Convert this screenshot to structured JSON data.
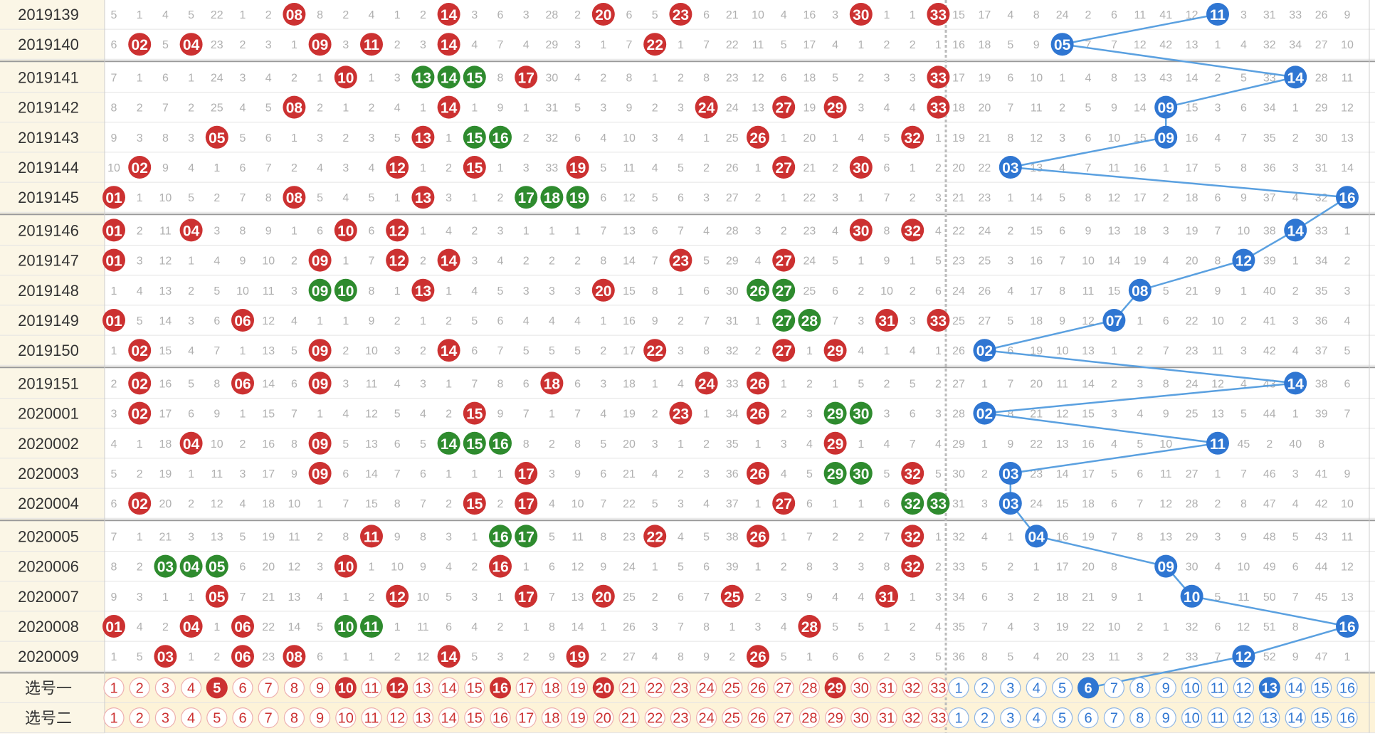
{
  "labels": {
    "select_one": "选号一",
    "select_two": "选号二"
  },
  "colors": {
    "red_ball": "#cc3131",
    "green_ball": "#2e8b2e",
    "blue_ball": "#2f76d2",
    "line": "#5aa0e0",
    "period_bg": "#fbf6e6",
    "select_bg": "#fdf3d8",
    "grid": "#e4e4e4"
  },
  "red_selected": [
    5,
    10,
    12,
    16,
    20,
    29
  ],
  "blue_selected": [
    6,
    13
  ],
  "rows": [
    {
      "period": "2019139",
      "red": [
        8,
        14,
        20,
        23,
        30,
        33
      ],
      "blue": 11,
      "group_start": false
    },
    {
      "period": "2019140",
      "red": [
        2,
        4,
        9,
        11,
        14,
        22
      ],
      "blue": 5,
      "group_start": false
    },
    {
      "period": "2019141",
      "red": [
        10,
        13,
        14,
        15,
        17,
        33
      ],
      "blue": 14,
      "group_start": true
    },
    {
      "period": "2019142",
      "red": [
        8,
        14,
        24,
        27,
        29,
        33
      ],
      "blue": 9,
      "group_start": false
    },
    {
      "period": "2019143",
      "red": [
        5,
        13,
        15,
        16,
        26,
        32
      ],
      "blue": 9,
      "group_start": false
    },
    {
      "period": "2019144",
      "red": [
        2,
        12,
        15,
        19,
        27,
        30
      ],
      "blue": 3,
      "group_start": false
    },
    {
      "period": "2019145",
      "red": [
        1,
        8,
        13,
        17,
        18,
        19
      ],
      "blue": 16,
      "group_start": false
    },
    {
      "period": "2019146",
      "red": [
        1,
        4,
        10,
        12,
        30,
        32
      ],
      "blue": 14,
      "group_start": true
    },
    {
      "period": "2019147",
      "red": [
        1,
        9,
        12,
        14,
        23,
        27
      ],
      "blue": 12,
      "group_start": false
    },
    {
      "period": "2019148",
      "red": [
        9,
        10,
        13,
        20,
        26,
        27
      ],
      "blue": 8,
      "group_start": false
    },
    {
      "period": "2019149",
      "red": [
        1,
        6,
        27,
        28,
        31,
        33
      ],
      "blue": 7,
      "group_start": false
    },
    {
      "period": "2019150",
      "red": [
        2,
        9,
        14,
        22,
        27,
        29
      ],
      "blue": 2,
      "group_start": false
    },
    {
      "period": "2019151",
      "red": [
        2,
        6,
        9,
        18,
        24,
        26
      ],
      "blue": 14,
      "group_start": true
    },
    {
      "period": "2020001",
      "red": [
        2,
        15,
        23,
        26,
        29,
        30
      ],
      "blue": 2,
      "group_start": false
    },
    {
      "period": "2020002",
      "red": [
        4,
        9,
        14,
        15,
        16,
        29
      ],
      "blue": 11,
      "group_start": false
    },
    {
      "period": "2020003",
      "red": [
        9,
        17,
        26,
        29,
        30,
        32
      ],
      "blue": 3,
      "group_start": false
    },
    {
      "period": "2020004",
      "red": [
        2,
        15,
        17,
        27,
        32,
        33
      ],
      "blue": 3,
      "group_start": false
    },
    {
      "period": "2020005",
      "red": [
        11,
        16,
        17,
        22,
        26,
        32
      ],
      "blue": 4,
      "group_start": true
    },
    {
      "period": "2020006",
      "red": [
        3,
        4,
        5,
        10,
        16,
        32
      ],
      "blue": 9,
      "group_start": false
    },
    {
      "period": "2020007",
      "red": [
        5,
        12,
        17,
        20,
        25,
        31
      ],
      "blue": 10,
      "group_start": false
    },
    {
      "period": "2020008",
      "red": [
        1,
        4,
        6,
        10,
        11,
        28
      ],
      "blue": 16,
      "group_start": false
    },
    {
      "period": "2020009",
      "red": [
        3,
        6,
        8,
        14,
        19,
        26
      ],
      "blue": 12,
      "group_start": false
    }
  ],
  "misses": [
    [
      "5",
      "1",
      "4",
      "5",
      "22",
      "1",
      "2",
      "",
      "8",
      "2",
      "4",
      "1",
      "2",
      "",
      "3",
      "6",
      "3",
      "28",
      "2",
      "",
      "6",
      "5",
      "",
      "6",
      "21",
      "10",
      "4",
      "16",
      "3",
      "",
      "1",
      "1",
      "",
      "15",
      "17",
      "4",
      "8",
      "24",
      "2",
      "6",
      "11",
      "41",
      "12",
      "",
      "3",
      "31",
      "33",
      "26",
      "9"
    ],
    [
      "6",
      "",
      "5",
      "",
      "23",
      "2",
      "3",
      "1",
      "",
      "3",
      "",
      "2",
      "3",
      "",
      "4",
      "7",
      "4",
      "29",
      "3",
      "1",
      "7",
      "",
      "1",
      "7",
      "22",
      "11",
      "5",
      "17",
      "4",
      "1",
      "2",
      "2",
      "1",
      "16",
      "18",
      "5",
      "9",
      "",
      "7",
      "7",
      "12",
      "42",
      "13",
      "1",
      "4",
      "32",
      "34",
      "27",
      "10"
    ],
    [
      "7",
      "1",
      "6",
      "1",
      "24",
      "3",
      "4",
      "2",
      "1",
      "",
      "1",
      "3",
      "",
      "",
      "",
      "8",
      "",
      "30",
      "4",
      "2",
      "8",
      "1",
      "2",
      "8",
      "23",
      "12",
      "6",
      "18",
      "5",
      "2",
      "3",
      "3",
      "",
      "17",
      "19",
      "6",
      "10",
      "1",
      "4",
      "8",
      "13",
      "43",
      "14",
      "2",
      "5",
      "33",
      "",
      "28",
      "11"
    ],
    [
      "8",
      "2",
      "7",
      "2",
      "25",
      "4",
      "5",
      "",
      "2",
      "1",
      "2",
      "4",
      "1",
      "",
      "1",
      "9",
      "1",
      "31",
      "5",
      "3",
      "9",
      "2",
      "3",
      "",
      "24",
      "13",
      "",
      "19",
      "",
      "3",
      "4",
      "4",
      "",
      "18",
      "20",
      "7",
      "11",
      "2",
      "5",
      "9",
      "14",
      "",
      "15",
      "3",
      "6",
      "34",
      "1",
      "29",
      "12"
    ],
    [
      "9",
      "3",
      "8",
      "3",
      "",
      "5",
      "6",
      "1",
      "3",
      "2",
      "3",
      "5",
      "",
      "1",
      "",
      "",
      "2",
      "32",
      "6",
      "4",
      "10",
      "3",
      "4",
      "1",
      "25",
      "",
      "1",
      "20",
      "1",
      "4",
      "5",
      "",
      "1",
      "19",
      "21",
      "8",
      "12",
      "3",
      "6",
      "10",
      "15",
      "",
      "16",
      "4",
      "7",
      "35",
      "2",
      "30",
      "13"
    ],
    [
      "10",
      "",
      "9",
      "4",
      "1",
      "6",
      "7",
      "2",
      "4",
      "3",
      "4",
      "",
      "1",
      "2",
      "",
      "1",
      "3",
      "33",
      "",
      "5",
      "11",
      "4",
      "5",
      "2",
      "26",
      "1",
      "",
      "21",
      "2",
      "",
      "6",
      "1",
      "2",
      "20",
      "22",
      "",
      "13",
      "4",
      "7",
      "11",
      "16",
      "1",
      "17",
      "5",
      "8",
      "36",
      "3",
      "31",
      "14"
    ],
    [
      "",
      "1",
      "10",
      "5",
      "2",
      "7",
      "8",
      "",
      "5",
      "4",
      "5",
      "1",
      "",
      "3",
      "1",
      "2",
      "",
      "",
      "",
      "6",
      "12",
      "5",
      "6",
      "3",
      "27",
      "2",
      "1",
      "22",
      "3",
      "1",
      "7",
      "2",
      "3",
      "21",
      "23",
      "1",
      "14",
      "5",
      "8",
      "12",
      "17",
      "2",
      "18",
      "6",
      "9",
      "37",
      "4",
      "32",
      ""
    ],
    [
      "",
      "2",
      "11",
      "",
      "3",
      "8",
      "9",
      "1",
      "6",
      "",
      "6",
      "",
      "1",
      "4",
      "2",
      "3",
      "1",
      "1",
      "1",
      "7",
      "13",
      "6",
      "7",
      "4",
      "28",
      "3",
      "2",
      "23",
      "4",
      "",
      "8",
      "",
      "4",
      "22",
      "24",
      "2",
      "15",
      "6",
      "9",
      "13",
      "18",
      "3",
      "19",
      "7",
      "10",
      "38",
      "",
      "33",
      "1"
    ],
    [
      "",
      "3",
      "12",
      "1",
      "4",
      "9",
      "10",
      "2",
      "",
      "1",
      "7",
      "",
      "2",
      "",
      "3",
      "4",
      "2",
      "2",
      "2",
      "8",
      "14",
      "7",
      "",
      "5",
      "29",
      "4",
      "",
      "24",
      "5",
      "1",
      "9",
      "1",
      "5",
      "23",
      "25",
      "3",
      "16",
      "7",
      "10",
      "14",
      "19",
      "4",
      "20",
      "8",
      "",
      "39",
      "1",
      "34",
      "2"
    ],
    [
      "1",
      "4",
      "13",
      "2",
      "5",
      "10",
      "11",
      "3",
      "",
      "",
      "8",
      "1",
      "",
      "1",
      "4",
      "5",
      "3",
      "3",
      "3",
      "",
      "15",
      "8",
      "1",
      "6",
      "30",
      "",
      "",
      "25",
      "6",
      "2",
      "10",
      "2",
      "6",
      "24",
      "26",
      "4",
      "17",
      "8",
      "11",
      "15",
      "",
      "5",
      "21",
      "9",
      "1",
      "40",
      "2",
      "35",
      "3"
    ],
    [
      "",
      "5",
      "14",
      "3",
      "6",
      "",
      "12",
      "4",
      "1",
      "1",
      "9",
      "2",
      "1",
      "2",
      "5",
      "6",
      "4",
      "4",
      "4",
      "1",
      "16",
      "9",
      "2",
      "7",
      "31",
      "1",
      "",
      "",
      "7",
      "3",
      "",
      "3",
      "",
      "25",
      "27",
      "5",
      "18",
      "9",
      "12",
      "",
      "1",
      "6",
      "22",
      "10",
      "2",
      "41",
      "3",
      "36",
      "4"
    ],
    [
      "1",
      "",
      "15",
      "4",
      "7",
      "1",
      "13",
      "5",
      "",
      "2",
      "10",
      "3",
      "2",
      "",
      "6",
      "7",
      "5",
      "5",
      "5",
      "2",
      "17",
      "",
      "3",
      "8",
      "32",
      "2",
      "",
      "1",
      "",
      "4",
      "1",
      "4",
      "1",
      "26",
      "",
      "6",
      "19",
      "10",
      "13",
      "1",
      "2",
      "7",
      "23",
      "11",
      "3",
      "42",
      "4",
      "37",
      "5"
    ],
    [
      "2",
      "",
      "16",
      "5",
      "8",
      "",
      "14",
      "6",
      "",
      "3",
      "11",
      "4",
      "3",
      "1",
      "7",
      "8",
      "6",
      "",
      "6",
      "3",
      "18",
      "1",
      "4",
      "",
      "33",
      "",
      "1",
      "2",
      "1",
      "5",
      "2",
      "5",
      "2",
      "27",
      "1",
      "7",
      "20",
      "11",
      "14",
      "2",
      "3",
      "8",
      "24",
      "12",
      "4",
      "43",
      "",
      "38",
      "6"
    ],
    [
      "3",
      "",
      "17",
      "6",
      "9",
      "1",
      "15",
      "7",
      "1",
      "4",
      "12",
      "5",
      "4",
      "2",
      "",
      "9",
      "7",
      "1",
      "7",
      "4",
      "19",
      "2",
      "",
      "1",
      "34",
      "",
      "2",
      "3",
      "",
      "",
      "3",
      "6",
      "3",
      "28",
      "",
      "8",
      "21",
      "12",
      "15",
      "3",
      "4",
      "9",
      "25",
      "13",
      "5",
      "44",
      "1",
      "39",
      "7"
    ],
    [
      "4",
      "1",
      "18",
      "",
      "10",
      "2",
      "16",
      "8",
      "",
      "5",
      "13",
      "6",
      "5",
      "",
      "",
      "",
      "8",
      "2",
      "8",
      "5",
      "20",
      "3",
      "1",
      "2",
      "35",
      "1",
      "3",
      "4",
      "",
      "1",
      "4",
      "7",
      "4",
      "29",
      "1",
      "9",
      "22",
      "13",
      "16",
      "4",
      "5",
      "10",
      "",
      "6",
      "45",
      "2",
      "40",
      "8",
      ""
    ],
    [
      "5",
      "2",
      "19",
      "1",
      "11",
      "3",
      "17",
      "9",
      "",
      "6",
      "14",
      "7",
      "6",
      "1",
      "1",
      "1",
      "",
      "3",
      "9",
      "6",
      "21",
      "4",
      "2",
      "3",
      "36",
      "",
      "4",
      "5",
      "",
      "",
      "5",
      "",
      "5",
      "30",
      "2",
      "",
      "23",
      "14",
      "17",
      "5",
      "6",
      "11",
      "27",
      "1",
      "7",
      "46",
      "3",
      "41",
      "9"
    ],
    [
      "6",
      "",
      "20",
      "2",
      "12",
      "4",
      "18",
      "10",
      "1",
      "7",
      "15",
      "8",
      "7",
      "2",
      "",
      "2",
      "",
      "4",
      "10",
      "7",
      "22",
      "5",
      "3",
      "4",
      "37",
      "1",
      "",
      "6",
      "1",
      "1",
      "6",
      "",
      "",
      " 31",
      "3",
      "",
      "24",
      "15",
      "18",
      "6",
      "7",
      "12",
      "28",
      "2",
      "8",
      "47",
      "4",
      "42",
      "10"
    ],
    [
      "7",
      "1",
      "21",
      "3",
      "13",
      "5",
      "19",
      "11",
      "2",
      "8",
      "",
      "9",
      "8",
      "3",
      "1",
      "",
      "",
      "5",
      "11",
      "8",
      "23",
      "",
      "4",
      "5",
      "38",
      "",
      "1",
      "7",
      "2",
      "2",
      "7",
      "",
      "1",
      "32",
      "4",
      "1",
      "",
      "16",
      "19",
      "7",
      "8",
      "13",
      "29",
      "3",
      "9",
      "48",
      "5",
      "43",
      "11"
    ],
    [
      "8",
      "2",
      "",
      "",
      "",
      "6",
      "20",
      "12",
      "3",
      "",
      "1",
      "10",
      "9",
      "4",
      "2",
      "",
      "1",
      "6",
      "12",
      "9",
      "24",
      "1",
      "5",
      "6",
      "39",
      "1",
      "2",
      "8",
      "3",
      "3",
      "8",
      "",
      "2",
      "33",
      "5",
      "2",
      "1",
      "17",
      "20",
      "8",
      "",
      "14",
      "30",
      "4",
      "10",
      "49",
      "6",
      "44",
      "12"
    ],
    [
      "9",
      "3",
      "1",
      "1",
      "",
      "7",
      "21",
      "13",
      "4",
      "1",
      "2",
      "",
      "10",
      "5",
      "3",
      "1",
      "",
      "7",
      "13",
      "",
      "25",
      "2",
      "6",
      "7",
      "",
      "2",
      "3",
      "9",
      "4",
      "4",
      "",
      "1",
      "3",
      "34",
      "6",
      "3",
      "2",
      "18",
      "21",
      "9",
      "1",
      "",
      "31",
      "5",
      "11",
      "50",
      "7",
      "45",
      "13"
    ],
    [
      "",
      "4",
      "2",
      "",
      "1",
      "",
      "22",
      "14",
      "5",
      "",
      "",
      "1",
      "11",
      "6",
      "4",
      "2",
      "1",
      "8",
      "14",
      "1",
      "26",
      "3",
      "7",
      "8",
      "1",
      "3",
      "4",
      "",
      "5",
      "5",
      "1",
      "2",
      "4",
      "35",
      "7",
      "4",
      "3",
      "19",
      "22",
      "10",
      "2",
      "1",
      "32",
      "6",
      "12",
      "51",
      "8",
      "",
      ""
    ],
    [
      "1",
      "5",
      "",
      "1",
      "2",
      "",
      "23",
      "",
      "6",
      "1",
      "1",
      "2",
      "12",
      "",
      "5",
      "3",
      "2",
      "9",
      "",
      "2",
      "27",
      "4",
      "8",
      "9",
      "2",
      "",
      "5",
      "1",
      "6",
      "6",
      "2",
      "3",
      "5",
      "36",
      "8",
      "5",
      "4",
      "20",
      "23",
      "11",
      "3",
      "2",
      "33",
      "7",
      "",
      "52",
      "9",
      "47",
      "1"
    ]
  ]
}
